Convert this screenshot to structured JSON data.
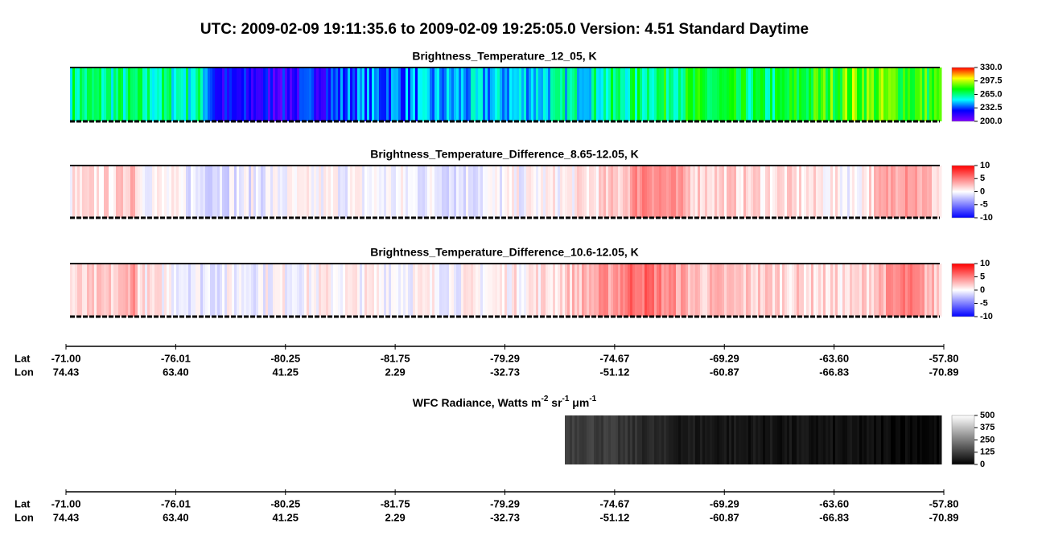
{
  "title": "UTC:  2009-02-09   19:11:35.6  to  2009-02-09   19:25:05.0    Version: 4.51  Standard Daytime",
  "chart_data": [
    {
      "type": "image",
      "title": "Brightness_Temperature_12_05, K",
      "colors": [
        "#8000ff",
        "#0000ff",
        "#00ffff",
        "#00ff00",
        "#ffff00",
        "#ff0000"
      ],
      "ylim": [
        200,
        330
      ],
      "yticks": [
        {
          "value": 330,
          "label": "330.0"
        },
        {
          "value": 297.5,
          "label": "297.5"
        },
        {
          "value": 265,
          "label": "265.0"
        },
        {
          "value": 232.5,
          "label": "232.5"
        },
        {
          "value": 200,
          "label": "200.0"
        }
      ]
    },
    {
      "type": "image",
      "title": "Brightness_Temperature_Difference_8.65-12.05, K",
      "colors": [
        "#0000ff",
        "#ffffff",
        "#ff0000"
      ],
      "ylim": [
        -10,
        10
      ],
      "yticks": [
        10,
        5,
        0,
        -5,
        -10
      ]
    },
    {
      "type": "image",
      "title": "Brightness_Temperature_Difference_10.6-12.05, K",
      "colors": [
        "#0000ff",
        "#ffffff",
        "#ff0000"
      ],
      "ylim": [
        -10,
        10
      ],
      "yticks": [
        10,
        5,
        0,
        -5,
        -10
      ]
    },
    {
      "type": "image",
      "title_parts": [
        "WFC Radiance, Watts m",
        "-2",
        " sr",
        "-1",
        " μ",
        "m",
        "-1"
      ],
      "colors": [
        "#000000",
        "#ffffff"
      ],
      "ylim": [
        0,
        500
      ],
      "yticks": [
        500,
        375,
        250,
        125,
        0
      ]
    }
  ],
  "axes": [
    {
      "row_labels": [
        "Lat",
        "Lon"
      ],
      "lat": [
        "-71.00",
        "-76.01",
        "-80.25",
        "-81.75",
        "-79.29",
        "-74.67",
        "-69.29",
        "-63.60",
        "-57.80"
      ],
      "lon": [
        "74.43",
        "63.40",
        "41.25",
        "2.29",
        "-32.73",
        "-51.12",
        "-60.87",
        "-66.83",
        "-70.89"
      ]
    },
    {
      "row_labels": [
        "Lat",
        "Lon"
      ],
      "lat": [
        "-71.00",
        "-76.01",
        "-80.25",
        "-81.75",
        "-79.29",
        "-74.67",
        "-69.29",
        "-63.60",
        "-57.80"
      ],
      "lon": [
        "74.43",
        "63.40",
        "41.25",
        "2.29",
        "-32.73",
        "-51.12",
        "-60.87",
        "-66.83",
        "-70.89"
      ]
    }
  ]
}
